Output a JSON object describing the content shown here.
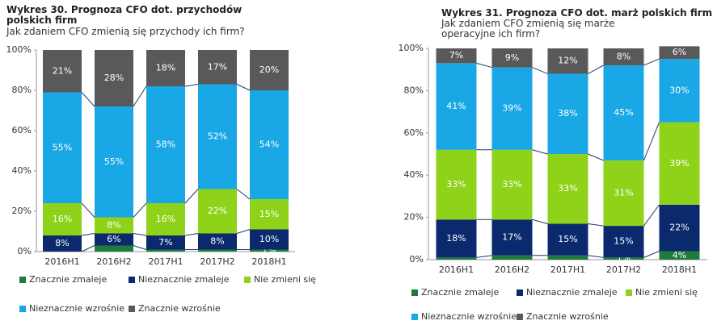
{
  "chart_data": [
    {
      "type": "bar",
      "stacked": true,
      "title": "Wykres 30. Prognoza CFO dot. przychodów polskich firm",
      "subtitle": "Jak zdaniem CFO zmienią się przychody ich firm?",
      "categories": [
        "2016H1",
        "2016H2",
        "2017H1",
        "2017H2",
        "2018H1"
      ],
      "ylim": [
        0,
        100
      ],
      "yticks": [
        {
          "value": 0,
          "label": "0%"
        },
        {
          "value": 20,
          "label": "20%"
        },
        {
          "value": 40,
          "label": "40%"
        },
        {
          "value": 60,
          "label": "60%"
        },
        {
          "value": 80,
          "label": "80%"
        },
        {
          "value": 100,
          "label": "100%"
        }
      ],
      "series": [
        {
          "name": "Znacznie zmaleje",
          "color": "#1e7b3c",
          "values": [
            0,
            3,
            1,
            1,
            1
          ],
          "value_labels": [
            null,
            null,
            null,
            null,
            "1%"
          ]
        },
        {
          "name": "Nieznacznie zmaleje",
          "color": "#0b2a6e",
          "values": [
            8,
            6,
            7,
            8,
            10
          ],
          "value_labels": [
            "8%",
            "6%",
            "7%",
            "8%",
            "10%"
          ]
        },
        {
          "name": "Nie zmieni się",
          "color": "#8fd21a",
          "values": [
            16,
            8,
            16,
            22,
            15
          ],
          "value_labels": [
            "16%",
            "8%",
            "16%",
            "22%",
            "15%"
          ]
        },
        {
          "name": "Nieznacznie wzrośnie",
          "color": "#1aa7e6",
          "values": [
            55,
            55,
            58,
            52,
            54
          ],
          "value_labels": [
            "55%",
            "55%",
            "58%",
            "52%",
            "54%"
          ]
        },
        {
          "name": "Znacznie wzrośnie",
          "color": "#595959",
          "values": [
            21,
            28,
            18,
            17,
            20
          ],
          "value_labels": [
            "21%",
            "28%",
            "18%",
            "17%",
            "20%"
          ]
        }
      ]
    },
    {
      "type": "bar",
      "stacked": true,
      "title": "Wykres 31. Prognoza CFO dot. marż polskich firm",
      "subtitle": "Jak zdaniem CFO zmienią się marże operacyjne ich firm?",
      "categories": [
        "2016H1",
        "2016H2",
        "2017H1",
        "2017H2",
        "2018H1"
      ],
      "ylim": [
        0,
        100
      ],
      "yticks": [
        {
          "value": 0,
          "label": "0%"
        },
        {
          "value": 20,
          "label": "20%"
        },
        {
          "value": 40,
          "label": "40%"
        },
        {
          "value": 60,
          "label": "60%"
        },
        {
          "value": 80,
          "label": "80%"
        },
        {
          "value": 100,
          "label": "100%"
        }
      ],
      "series": [
        {
          "name": "Znacznie zmaleje",
          "color": "#1e7b3c",
          "values": [
            1,
            2,
            2,
            1,
            4
          ],
          "value_labels": [
            null,
            null,
            null,
            "1%",
            "4%"
          ]
        },
        {
          "name": "Nieznacznie zmaleje",
          "color": "#0b2a6e",
          "values": [
            18,
            17,
            15,
            15,
            22
          ],
          "value_labels": [
            "18%",
            "17%",
            "15%",
            "15%",
            "22%"
          ]
        },
        {
          "name": "Nie zmieni się",
          "color": "#8fd21a",
          "values": [
            33,
            33,
            33,
            31,
            39
          ],
          "value_labels": [
            "33%",
            "33%",
            "33%",
            "31%",
            "39%"
          ]
        },
        {
          "name": "Nieznacznie wzrośnie",
          "color": "#1aa7e6",
          "values": [
            41,
            39,
            38,
            45,
            30
          ],
          "value_labels": [
            "41%",
            "39%",
            "38%",
            "45%",
            "30%"
          ]
        },
        {
          "name": "Znacznie wzrośnie",
          "color": "#595959",
          "values": [
            7,
            9,
            12,
            8,
            6
          ],
          "value_labels": [
            "7%",
            "9%",
            "12%",
            "8%",
            "6%"
          ]
        }
      ]
    }
  ]
}
